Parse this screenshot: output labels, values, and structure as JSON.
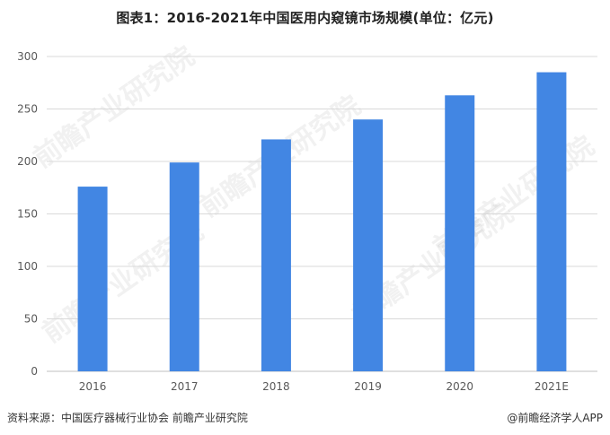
{
  "title": "图表1：2016-2021年中国医用内窥镜市场规模(单位：亿元)",
  "footer": {
    "source": "资料来源：中国医疗器械行业协会 前瞻产业研究院",
    "brand": "@前瞻经济学人APP"
  },
  "watermark": "前瞻产业研究院",
  "colors": {
    "bar": "#4286e3",
    "grid": "#d9d9d9",
    "axis": "#bfbfbf"
  },
  "chart_data": {
    "type": "bar",
    "categories": [
      "2016",
      "2017",
      "2018",
      "2019",
      "2020",
      "2021E"
    ],
    "values": [
      176,
      199,
      221,
      240,
      263,
      285
    ],
    "ylim": [
      0,
      300
    ],
    "yticks": [
      0,
      50,
      100,
      150,
      200,
      250,
      300
    ],
    "grid": true,
    "legend": "none"
  }
}
